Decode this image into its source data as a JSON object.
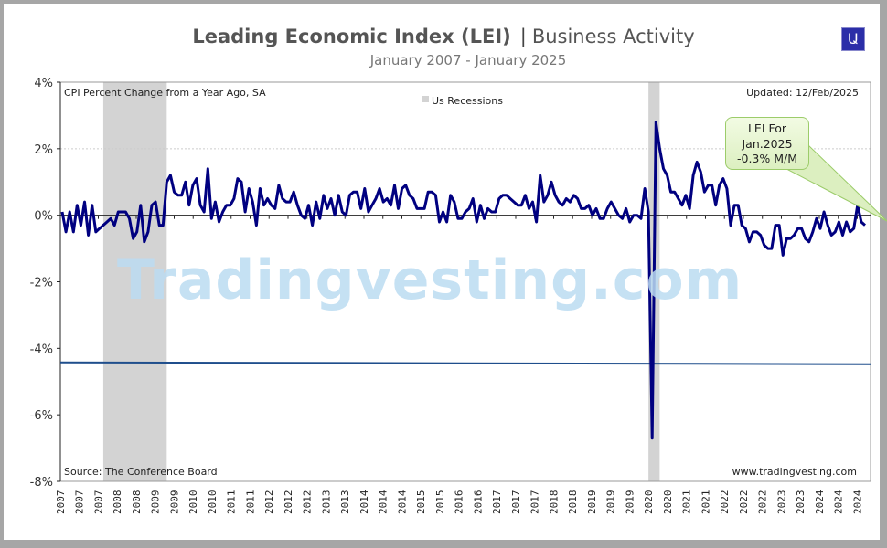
{
  "header": {
    "title_main": "Leading Economic Index (LEI)",
    "title_sep": "|",
    "title_section": "Business Activity",
    "subtitle": "January 2007 - January 2025",
    "logo_glyph": "Ա"
  },
  "watermark": "Tradingvesting.com",
  "chart_data": {
    "type": "line",
    "title": "Leading Economic Index (LEI)",
    "ylabel_note": "CPI Percent Change from a Year Ago, SA",
    "legend": "Us Recessions",
    "updated": "Updated: 12/Feb/2025",
    "source": "Source: The Conference Board",
    "website": "www.tradingvesting.com",
    "ylim": [
      -8,
      4
    ],
    "yticks": [
      "4%",
      "2%",
      "0%",
      "-2%",
      "-4%",
      "-6%",
      "-8%"
    ],
    "ytick_values": [
      4,
      2,
      0,
      -2,
      -4,
      -6,
      -8
    ],
    "xtick_labels": [
      "2007",
      "2007",
      "2007",
      "2008",
      "2008",
      "2009",
      "2009",
      "2010",
      "2010",
      "2011",
      "2011",
      "2012",
      "2012",
      "2012",
      "2013",
      "2013",
      "2014",
      "2014",
      "2014",
      "2015",
      "2015",
      "2016",
      "2016",
      "2017",
      "2017",
      "2017",
      "2018",
      "2018",
      "2019",
      "2019",
      "2019",
      "2020",
      "2020",
      "2021",
      "2021",
      "2022",
      "2022",
      "2022",
      "2023",
      "2023",
      "2024",
      "2024",
      "2024"
    ],
    "grid": "dashed at 2%",
    "series_color": "#000080",
    "recession_color": "#d3d3d3",
    "recessions": [
      [
        "Dec 2007",
        "Jun 2009"
      ],
      [
        "Feb 2020",
        "Apr 2020"
      ]
    ],
    "reference_line": {
      "value": -4.45,
      "color": "#1f4e8c"
    },
    "values": [
      0.1,
      -0.5,
      0.1,
      -0.5,
      0.3,
      -0.3,
      0.4,
      -0.6,
      0.3,
      -0.5,
      -0.4,
      -0.3,
      -0.2,
      -0.1,
      -0.3,
      0.1,
      0.1,
      0.1,
      -0.1,
      -0.7,
      -0.5,
      0.3,
      -0.8,
      -0.5,
      0.3,
      0.4,
      -0.3,
      -0.3,
      1.0,
      1.2,
      0.7,
      0.6,
      0.6,
      1.0,
      0.3,
      0.9,
      1.1,
      0.3,
      0.1,
      1.4,
      -0.1,
      0.4,
      -0.2,
      0.1,
      0.3,
      0.3,
      0.5,
      1.1,
      1.0,
      0.1,
      0.8,
      0.4,
      -0.3,
      0.8,
      0.3,
      0.5,
      0.3,
      0.2,
      0.9,
      0.5,
      0.4,
      0.4,
      0.7,
      0.3,
      0.0,
      -0.1,
      0.3,
      -0.3,
      0.4,
      -0.1,
      0.6,
      0.2,
      0.5,
      0.0,
      0.6,
      0.1,
      0.0,
      0.6,
      0.7,
      0.7,
      0.2,
      0.8,
      0.1,
      0.3,
      0.5,
      0.8,
      0.4,
      0.5,
      0.3,
      0.9,
      0.2,
      0.8,
      0.9,
      0.6,
      0.5,
      0.2,
      0.2,
      0.2,
      0.7,
      0.7,
      0.6,
      -0.2,
      0.1,
      -0.2,
      0.6,
      0.4,
      -0.1,
      -0.1,
      0.1,
      0.2,
      0.5,
      -0.2,
      0.3,
      -0.1,
      0.2,
      0.1,
      0.1,
      0.5,
      0.6,
      0.6,
      0.5,
      0.4,
      0.3,
      0.3,
      0.6,
      0.2,
      0.4,
      -0.2,
      1.2,
      0.4,
      0.6,
      1.0,
      0.6,
      0.4,
      0.3,
      0.5,
      0.4,
      0.6,
      0.5,
      0.2,
      0.2,
      0.3,
      0.0,
      0.2,
      -0.1,
      -0.1,
      0.2,
      0.4,
      0.2,
      0.0,
      -0.1,
      0.2,
      -0.2,
      0.0,
      0.0,
      -0.1,
      0.8,
      0.1,
      -6.7,
      2.8,
      2.0,
      1.4,
      1.2,
      0.7,
      0.7,
      0.5,
      0.3,
      0.6,
      0.2,
      1.2,
      1.6,
      1.3,
      0.7,
      0.9,
      0.9,
      0.3,
      0.9,
      1.1,
      0.8,
      -0.3,
      0.3,
      0.3,
      -0.3,
      -0.4,
      -0.8,
      -0.5,
      -0.5,
      -0.6,
      -0.9,
      -1.0,
      -1.0,
      -0.3,
      -0.3,
      -1.2,
      -0.7,
      -0.7,
      -0.6,
      -0.4,
      -0.4,
      -0.7,
      -0.8,
      -0.5,
      -0.1,
      -0.4,
      0.1,
      -0.3,
      -0.6,
      -0.5,
      -0.2,
      -0.6,
      -0.2,
      -0.5,
      -0.4,
      0.3,
      -0.2,
      -0.3
    ],
    "annotation": {
      "line1": "LEI For",
      "line2": "Jan.2025",
      "line3": "-0.3% M/M"
    }
  }
}
